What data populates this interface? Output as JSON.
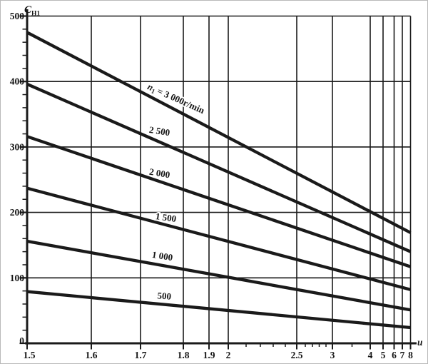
{
  "figure": {
    "y_axis_title": {
      "main": "C",
      "sub": "H1"
    },
    "x_axis_title": "u",
    "ink_color": "#1a1a1a",
    "background": "#ffffff"
  },
  "chart_data": {
    "type": "line",
    "title": "",
    "xlabel": "u",
    "ylabel": "C_H1",
    "xlim": [
      1.5,
      8
    ],
    "ylim": [
      0,
      500
    ],
    "x_scale": "nonlinear-compressed (log-like)",
    "grid": true,
    "legend_position": "labels-on-lines",
    "x_ticks": [
      1.5,
      1.6,
      1.7,
      1.8,
      1.9,
      2,
      2.5,
      3,
      4,
      5,
      6,
      7,
      8
    ],
    "x_tick_labels": [
      "1.5",
      "1.6",
      "1.7",
      "1.8",
      "1.9",
      "2",
      "2.5",
      "3",
      "4",
      "5",
      "6",
      "7",
      "8"
    ],
    "x_minor_ticks": [
      2.1,
      2.2,
      2.3,
      2.4,
      2.6,
      2.7,
      2.8,
      2.9,
      3.5
    ],
    "y_ticks": [
      0,
      100,
      200,
      300,
      400,
      500
    ],
    "y_tick_labels": [
      "0",
      "100",
      "200",
      "300",
      "400",
      "500"
    ],
    "y_minor_tick_step": 20,
    "series": [
      {
        "name": "n1 = 3000 r/min",
        "label": "n₁ = 3 000r/min",
        "label_parts": {
          "main": "n",
          "sub": "1",
          "rest": " = 3 000r/min"
        },
        "points": [
          [
            1.5,
            475
          ],
          [
            8,
            169
          ]
        ]
      },
      {
        "name": "n1 = 2500 r/min",
        "label": "2 500",
        "points": [
          [
            1.5,
            396
          ],
          [
            8,
            140
          ]
        ]
      },
      {
        "name": "n1 = 2000 r/min",
        "label": "2 000",
        "points": [
          [
            1.5,
            316
          ],
          [
            8,
            117
          ]
        ]
      },
      {
        "name": "n1 = 1500 r/min",
        "label": "1 500",
        "points": [
          [
            1.5,
            237
          ],
          [
            8,
            82
          ]
        ]
      },
      {
        "name": "n1 = 1000 r/min",
        "label": "1 000",
        "points": [
          [
            1.5,
            156
          ],
          [
            8,
            51
          ]
        ]
      },
      {
        "name": "n1 = 500 r/min",
        "label": "500",
        "points": [
          [
            1.5,
            79
          ],
          [
            8,
            24
          ]
        ]
      }
    ]
  }
}
